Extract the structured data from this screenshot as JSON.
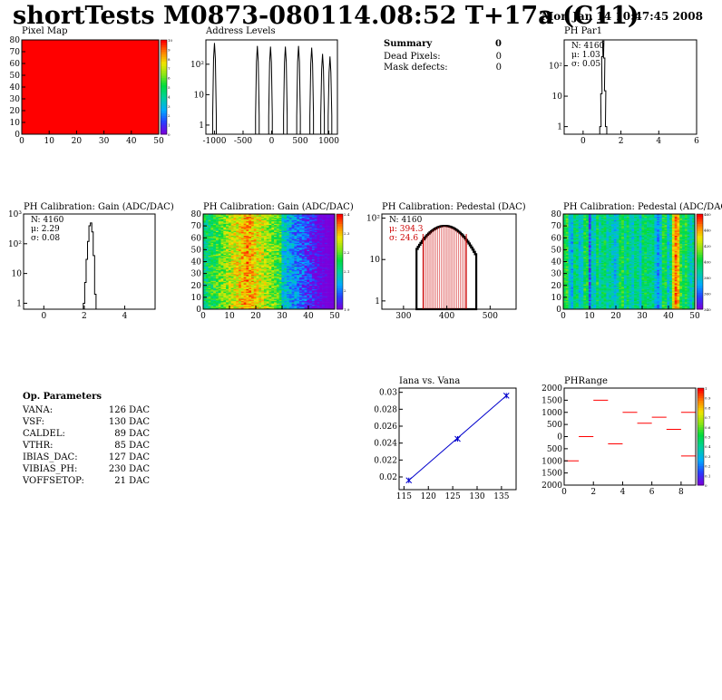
{
  "header": {
    "title": "shortTests M0873-080114.08:52 T+17a (C11)",
    "date": "Mon Jan 14 10:47:45 2008"
  },
  "summary": {
    "title": "Summary",
    "value": "0",
    "rows": [
      {
        "label": "Dead Pixels:",
        "value": "0"
      },
      {
        "label": "Mask defects:",
        "value": "0"
      }
    ]
  },
  "op_params": {
    "title": "Op. Parameters",
    "rows": [
      {
        "label": "VANA:",
        "value": "126 DAC"
      },
      {
        "label": "VSF:",
        "value": "130 DAC"
      },
      {
        "label": "CALDEL:",
        "value": "89 DAC"
      },
      {
        "label": "VTHR:",
        "value": "85 DAC"
      },
      {
        "label": "IBIAS_DAC:",
        "value": "127 DAC"
      },
      {
        "label": "VIBIAS_PH:",
        "value": "230 DAC"
      },
      {
        "label": "VOFFSETOP:",
        "value": "21 DAC"
      }
    ]
  },
  "colors": {
    "map_red": "#ff0000",
    "hist_line": "#000000",
    "fit_red": "#cc0000",
    "fit_blue": "#0000cc"
  },
  "chart_data": [
    {
      "id": "pixelmap",
      "type": "heatmap",
      "title": "Pixel Map",
      "xlim": [
        0,
        52
      ],
      "ylim": [
        0,
        80
      ],
      "xticks": [
        "0",
        "10",
        "20",
        "30",
        "40",
        "50"
      ],
      "yticks": [
        "0",
        "10",
        "20",
        "30",
        "40",
        "50",
        "60",
        "70",
        "80"
      ],
      "palette_ticks": [
        "0",
        "1",
        "2",
        "3",
        "4",
        "5",
        "6",
        "7",
        "8",
        "9",
        "10"
      ],
      "uniform_value": 10
    },
    {
      "id": "address",
      "type": "bar",
      "title": "Address Levels",
      "xlim": [
        -1150,
        1150
      ],
      "ylog": true,
      "xticks": [
        "-1000",
        "-500",
        "0",
        "500",
        "1000"
      ],
      "yticks": [
        "1",
        "10",
        "10²"
      ],
      "peaks": [
        {
          "x": -1000,
          "y": 500
        },
        {
          "x": -250,
          "y": 400
        },
        {
          "x": -20,
          "y": 380
        },
        {
          "x": 240,
          "y": 380
        },
        {
          "x": 470,
          "y": 400
        },
        {
          "x": 700,
          "y": 350
        },
        {
          "x": 890,
          "y": 220
        },
        {
          "x": 1020,
          "y": 180
        }
      ]
    },
    {
      "id": "phpar1",
      "type": "bar",
      "title": "PH Par1",
      "xlim": [
        -1,
        6
      ],
      "ylog": true,
      "xticks": [
        "0",
        "2",
        "4",
        "6"
      ],
      "yticks": [
        "1",
        "10",
        "10²"
      ],
      "stats": [
        "N: 4160",
        "μ: 1.03",
        "σ: 0.05"
      ],
      "hist": {
        "x": [
          0.88,
          0.93,
          0.98,
          1.03,
          1.08,
          1.13,
          1.18
        ],
        "y": [
          1,
          12,
          200,
          650,
          180,
          15,
          1
        ]
      }
    },
    {
      "id": "gainhist",
      "type": "bar",
      "title": "PH Calibration: Gain (ADC/DAC)",
      "xlim": [
        -1,
        5.5
      ],
      "ylog": true,
      "xticks": [
        "0",
        "2",
        "4"
      ],
      "yticks": [
        "1",
        "10",
        "10²",
        "10³"
      ],
      "stats": [
        "N: 4160",
        "μ: 2.29",
        "σ: 0.08"
      ],
      "hist": {
        "x": [
          1.95,
          2.02,
          2.09,
          2.16,
          2.23,
          2.3,
          2.37,
          2.44,
          2.51
        ],
        "y": [
          1,
          5,
          30,
          120,
          400,
          500,
          250,
          40,
          2
        ]
      }
    },
    {
      "id": "gainmap",
      "type": "heatmap",
      "title": "PH Calibration: Gain (ADC/DAC)",
      "xlim": [
        0,
        52
      ],
      "ylim": [
        0,
        80
      ],
      "xticks": [
        "0",
        "10",
        "20",
        "30",
        "40",
        "50"
      ],
      "yticks": [
        "0",
        "10",
        "20",
        "30",
        "40",
        "50",
        "60",
        "70",
        "80"
      ],
      "palette_ticks": [
        "1.9",
        "2",
        "2.1",
        "2.2",
        "2.3",
        "2.4"
      ]
    },
    {
      "id": "pedhist",
      "type": "bar",
      "title": "PH Calibration: Pedestal (DAC)",
      "xlim": [
        250,
        560
      ],
      "ylog": true,
      "xticks": [
        "300",
        "400",
        "500"
      ],
      "yticks": [
        "1",
        "10",
        "10²"
      ],
      "stats": [
        "N: 4160",
        "μ: 394.3",
        "σ: 24.6"
      ],
      "fit_range": [
        345,
        445
      ],
      "peak_y": 65
    },
    {
      "id": "pedmap",
      "type": "heatmap",
      "title": "PH Calibration: Pedestal (ADC/DAC)",
      "xlim": [
        0,
        52
      ],
      "ylim": [
        0,
        80
      ],
      "xticks": [
        "0",
        "10",
        "20",
        "30",
        "40",
        "50"
      ],
      "yticks": [
        "0",
        "10",
        "20",
        "30",
        "40",
        "50",
        "60",
        "70",
        "80"
      ],
      "palette_ticks": [
        "340",
        "360",
        "380",
        "400",
        "420",
        "440",
        "460"
      ]
    },
    {
      "id": "iana",
      "type": "line",
      "title": "Iana vs. Vana",
      "xlim": [
        114,
        138
      ],
      "ylim": [
        0.0185,
        0.0305
      ],
      "xticks": [
        "115",
        "120",
        "125",
        "130",
        "135"
      ],
      "yticks": [
        "0.02",
        "0.022",
        "0.024",
        "0.026",
        "0.028",
        "0.03"
      ],
      "x": [
        116,
        126,
        136
      ],
      "y": [
        0.0196,
        0.0245,
        0.0296
      ]
    },
    {
      "id": "phrange",
      "type": "heatmap",
      "title": "PHRange",
      "xlim": [
        0,
        9
      ],
      "ylim": [
        -2000,
        2000
      ],
      "xticks": [
        "0",
        "2",
        "4",
        "6",
        "8"
      ],
      "yticks": [
        "2000",
        "1500",
        "1000",
        "500",
        "0",
        "500",
        "1000",
        "1500",
        "2000"
      ],
      "palette_ticks": [
        "0",
        "0.1",
        "0.2",
        "0.3",
        "0.4",
        "0.5",
        "0.6",
        "0.7",
        "0.8",
        "0.9",
        "1"
      ],
      "segments": [
        {
          "x": 0,
          "y": -1000
        },
        {
          "x": 1,
          "y": 0
        },
        {
          "x": 2,
          "y": 1500
        },
        {
          "x": 3,
          "y": -300
        },
        {
          "x": 4,
          "y": 1000
        },
        {
          "x": 5,
          "y": 550
        },
        {
          "x": 6,
          "y": 800
        },
        {
          "x": 7,
          "y": 300
        },
        {
          "x": 8,
          "y": 1000
        },
        {
          "x": 8,
          "y": -800
        }
      ]
    }
  ]
}
